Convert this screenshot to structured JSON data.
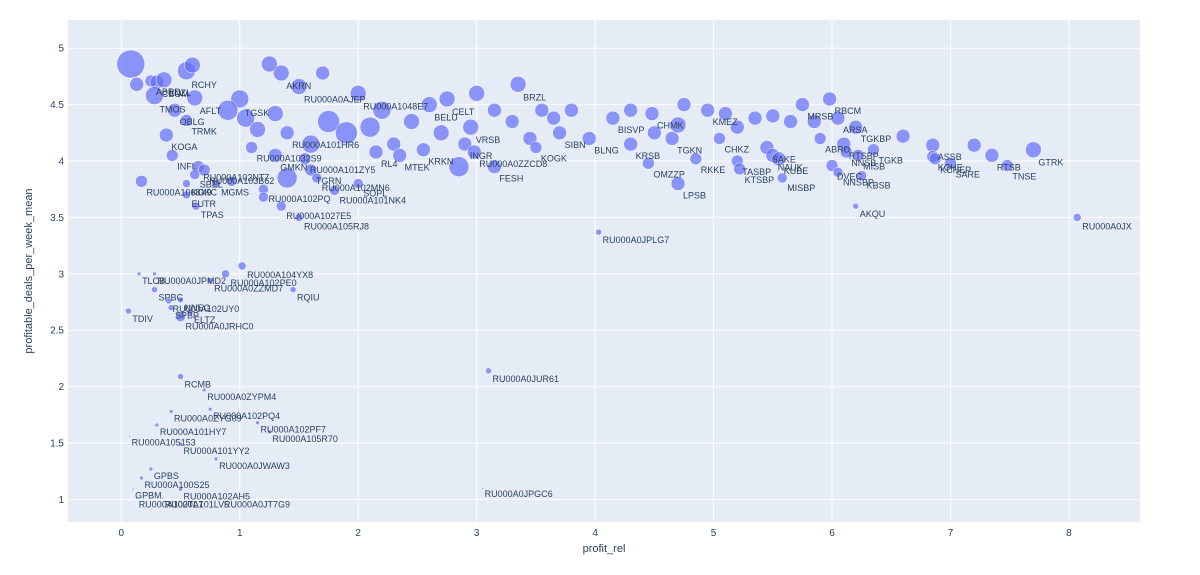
{
  "chart_data": {
    "type": "scatter",
    "subtype": "bubble",
    "title": "",
    "xlabel": "profit_rel",
    "ylabel": "profitable_deals_per_week_mean",
    "xlim": [
      -0.45,
      8.6
    ],
    "ylim": [
      0.8,
      5.25
    ],
    "xticks": [
      "0",
      "1",
      "2",
      "3",
      "4",
      "5",
      "6",
      "7",
      "8"
    ],
    "yticks": [
      "1",
      "1.5",
      "2",
      "2.5",
      "3",
      "3.5",
      "4",
      "4.5",
      "5"
    ],
    "background_color": "#e5ecf6",
    "marker_color": "#636efa",
    "grid_color": "#ffffff",
    "points": [
      {
        "label": "",
        "x": 0.08,
        "y": 4.86,
        "size": 14
      },
      {
        "label": "",
        "x": 0.13,
        "y": 4.68,
        "size": 7
      },
      {
        "label": "ABRD",
        "x": 0.25,
        "y": 4.71,
        "size": 6
      },
      {
        "label": "CBOM",
        "x": 0.3,
        "y": 4.7,
        "size": 7
      },
      {
        "label": "LNZL",
        "x": 0.36,
        "y": 4.72,
        "size": 8
      },
      {
        "label": "TMOS",
        "x": 0.28,
        "y": 4.58,
        "size": 9
      },
      {
        "label": "RCHY",
        "x": 0.55,
        "y": 4.8,
        "size": 9
      },
      {
        "label": "",
        "x": 0.6,
        "y": 4.85,
        "size": 8
      },
      {
        "label": "OBLG",
        "x": 0.45,
        "y": 4.45,
        "size": 7
      },
      {
        "label": "AFLT",
        "x": 0.62,
        "y": 4.56,
        "size": 8
      },
      {
        "label": "TRMK",
        "x": 0.55,
        "y": 4.36,
        "size": 6
      },
      {
        "label": "KOGA",
        "x": 0.38,
        "y": 4.23,
        "size": 7
      },
      {
        "label": "INFL",
        "x": 0.43,
        "y": 4.05,
        "size": 6
      },
      {
        "label": "RU000A102NT7",
        "x": 0.65,
        "y": 3.95,
        "size": 6
      },
      {
        "label": "RU000A103B62",
        "x": 0.7,
        "y": 3.92,
        "size": 6
      },
      {
        "label": "SBEL",
        "x": 0.62,
        "y": 3.88,
        "size": 5
      },
      {
        "label": "RU000A1068X9",
        "x": 0.17,
        "y": 3.82,
        "size": 6
      },
      {
        "label": "KGKC",
        "x": 0.55,
        "y": 3.8,
        "size": 4
      },
      {
        "label": "MGMS",
        "x": 0.8,
        "y": 3.8,
        "size": 4
      },
      {
        "label": "EUTR",
        "x": 0.55,
        "y": 3.7,
        "size": 4
      },
      {
        "label": "TPAS",
        "x": 0.63,
        "y": 3.6,
        "size": 4
      },
      {
        "label": "AKRN",
        "x": 1.35,
        "y": 4.78,
        "size": 8
      },
      {
        "label": "RU000A0AJEP",
        "x": 1.5,
        "y": 4.66,
        "size": 8
      },
      {
        "label": "",
        "x": 1.25,
        "y": 4.86,
        "size": 8
      },
      {
        "label": "",
        "x": 1.7,
        "y": 4.78,
        "size": 7
      },
      {
        "label": "TGSK",
        "x": 1.0,
        "y": 4.55,
        "size": 9
      },
      {
        "label": "",
        "x": 0.9,
        "y": 4.45,
        "size": 10
      },
      {
        "label": "RU000A101HR6",
        "x": 1.4,
        "y": 4.25,
        "size": 7
      },
      {
        "label": "RU000A1032S9",
        "x": 1.1,
        "y": 4.12,
        "size": 6
      },
      {
        "label": "GMKN",
        "x": 1.3,
        "y": 4.05,
        "size": 7
      },
      {
        "label": "RU000A101ZY5",
        "x": 1.55,
        "y": 4.02,
        "size": 6
      },
      {
        "label": "TGRN",
        "x": 1.6,
        "y": 3.92,
        "size": 6
      },
      {
        "label": "RU000A102MN6",
        "x": 1.65,
        "y": 3.85,
        "size": 5
      },
      {
        "label": "SOPL",
        "x": 2.0,
        "y": 3.8,
        "size": 5
      },
      {
        "label": "RU000A101NK4",
        "x": 1.8,
        "y": 3.74,
        "size": 5
      },
      {
        "label": "RU000A102PQ",
        "x": 1.2,
        "y": 3.75,
        "size": 5
      },
      {
        "label": "",
        "x": 0.93,
        "y": 3.82,
        "size": 5
      },
      {
        "label": "RU000A1027E5",
        "x": 1.35,
        "y": 3.6,
        "size": 5
      },
      {
        "label": "RU000A105RJ8",
        "x": 1.5,
        "y": 3.5,
        "size": 4
      },
      {
        "label": "",
        "x": 1.2,
        "y": 3.68,
        "size": 5
      },
      {
        "label": "",
        "x": 1.4,
        "y": 3.85,
        "size": 10
      },
      {
        "label": "",
        "x": 1.75,
        "y": 4.35,
        "size": 11
      },
      {
        "label": "",
        "x": 1.9,
        "y": 4.25,
        "size": 11
      },
      {
        "label": "",
        "x": 2.1,
        "y": 4.3,
        "size": 10
      },
      {
        "label": "",
        "x": 1.6,
        "y": 4.15,
        "size": 9
      },
      {
        "label": "",
        "x": 2.2,
        "y": 4.45,
        "size": 9
      },
      {
        "label": "",
        "x": 1.05,
        "y": 4.38,
        "size": 9
      },
      {
        "label": "",
        "x": 1.15,
        "y": 4.28,
        "size": 8
      },
      {
        "label": "",
        "x": 1.3,
        "y": 4.42,
        "size": 8
      },
      {
        "label": "RU000A1048E7",
        "x": 2.0,
        "y": 4.6,
        "size": 8
      },
      {
        "label": "",
        "x": 2.45,
        "y": 4.35,
        "size": 8
      },
      {
        "label": "BELU",
        "x": 2.6,
        "y": 4.5,
        "size": 8
      },
      {
        "label": "",
        "x": 2.7,
        "y": 4.25,
        "size": 8
      },
      {
        "label": "",
        "x": 2.3,
        "y": 4.15,
        "size": 7
      },
      {
        "label": "RL4",
        "x": 2.15,
        "y": 4.08,
        "size": 7
      },
      {
        "label": "MTEK",
        "x": 2.35,
        "y": 4.05,
        "size": 7
      },
      {
        "label": "KRKN",
        "x": 2.55,
        "y": 4.1,
        "size": 7
      },
      {
        "label": "CELT",
        "x": 2.75,
        "y": 4.55,
        "size": 8
      },
      {
        "label": "VRSB",
        "x": 2.95,
        "y": 4.3,
        "size": 8
      },
      {
        "label": "INGR",
        "x": 2.9,
        "y": 4.15,
        "size": 7
      },
      {
        "label": "RU000A0ZZCD8",
        "x": 2.98,
        "y": 4.08,
        "size": 7
      },
      {
        "label": "",
        "x": 3.0,
        "y": 4.6,
        "size": 8
      },
      {
        "label": "",
        "x": 3.15,
        "y": 4.45,
        "size": 7
      },
      {
        "label": "",
        "x": 2.85,
        "y": 3.95,
        "size": 10
      },
      {
        "label": "FESH",
        "x": 3.15,
        "y": 3.95,
        "size": 7
      },
      {
        "label": "",
        "x": 3.3,
        "y": 4.35,
        "size": 7
      },
      {
        "label": "BRZL",
        "x": 3.35,
        "y": 4.68,
        "size": 8
      },
      {
        "label": "",
        "x": 3.55,
        "y": 4.45,
        "size": 7
      },
      {
        "label": "",
        "x": 3.45,
        "y": 4.2,
        "size": 7
      },
      {
        "label": "KOGK",
        "x": 3.5,
        "y": 4.12,
        "size": 6
      },
      {
        "label": "",
        "x": 3.65,
        "y": 4.38,
        "size": 7
      },
      {
        "label": "SIBN",
        "x": 3.7,
        "y": 4.25,
        "size": 7
      },
      {
        "label": "",
        "x": 3.8,
        "y": 4.45,
        "size": 7
      },
      {
        "label": "BLNG",
        "x": 3.95,
        "y": 4.2,
        "size": 7
      },
      {
        "label": "BISVP",
        "x": 4.15,
        "y": 4.38,
        "size": 7
      },
      {
        "label": "",
        "x": 4.3,
        "y": 4.45,
        "size": 7
      },
      {
        "label": "CHMK",
        "x": 4.48,
        "y": 4.42,
        "size": 7
      },
      {
        "label": "KRSB",
        "x": 4.3,
        "y": 4.15,
        "size": 7
      },
      {
        "label": "",
        "x": 4.5,
        "y": 4.25,
        "size": 7
      },
      {
        "label": "TGKN",
        "x": 4.65,
        "y": 4.2,
        "size": 7
      },
      {
        "label": "",
        "x": 4.75,
        "y": 4.5,
        "size": 7
      },
      {
        "label": "",
        "x": 4.7,
        "y": 4.32,
        "size": 8
      },
      {
        "label": "OMZZP",
        "x": 4.45,
        "y": 3.98,
        "size": 6
      },
      {
        "label": "RKKE",
        "x": 4.85,
        "y": 4.02,
        "size": 6
      },
      {
        "label": "LPSB",
        "x": 4.7,
        "y": 3.8,
        "size": 7
      },
      {
        "label": "KMEZ",
        "x": 4.95,
        "y": 4.45,
        "size": 7
      },
      {
        "label": "",
        "x": 5.1,
        "y": 4.42,
        "size": 7
      },
      {
        "label": "",
        "x": 5.2,
        "y": 4.3,
        "size": 7
      },
      {
        "label": "",
        "x": 5.35,
        "y": 4.38,
        "size": 7
      },
      {
        "label": "CHKZ",
        "x": 5.05,
        "y": 4.2,
        "size": 6
      },
      {
        "label": "TASBP",
        "x": 5.2,
        "y": 4.0,
        "size": 6
      },
      {
        "label": "KTSBP",
        "x": 5.22,
        "y": 3.93,
        "size": 6
      },
      {
        "label": "",
        "x": 5.5,
        "y": 4.4,
        "size": 7
      },
      {
        "label": "",
        "x": 5.65,
        "y": 4.35,
        "size": 7
      },
      {
        "label": "SAKE",
        "x": 5.45,
        "y": 4.12,
        "size": 7
      },
      {
        "label": "NAUK",
        "x": 5.5,
        "y": 4.05,
        "size": 7
      },
      {
        "label": "KUBE",
        "x": 5.55,
        "y": 4.02,
        "size": 7
      },
      {
        "label": "MISBP",
        "x": 5.58,
        "y": 3.85,
        "size": 5
      },
      {
        "label": "MRSB",
        "x": 5.75,
        "y": 4.5,
        "size": 7
      },
      {
        "label": "",
        "x": 5.85,
        "y": 4.35,
        "size": 7
      },
      {
        "label": "ABRD",
        "x": 5.9,
        "y": 4.2,
        "size": 6
      },
      {
        "label": "RBCM",
        "x": 5.98,
        "y": 4.55,
        "size": 7
      },
      {
        "label": "ARSA",
        "x": 6.05,
        "y": 4.38,
        "size": 7
      },
      {
        "label": "TGKBP",
        "x": 6.2,
        "y": 4.3,
        "size": 7
      },
      {
        "label": "RTSBP",
        "x": 6.1,
        "y": 4.15,
        "size": 7
      },
      {
        "label": "NNSB",
        "x": 6.12,
        "y": 4.08,
        "size": 6
      },
      {
        "label": "MISB",
        "x": 6.22,
        "y": 4.05,
        "size": 6
      },
      {
        "label": "DVEC",
        "x": 6.0,
        "y": 3.96,
        "size": 6
      },
      {
        "label": "TGKB",
        "x": 6.35,
        "y": 4.1,
        "size": 6
      },
      {
        "label": "NNSBP",
        "x": 6.05,
        "y": 3.9,
        "size": 5
      },
      {
        "label": "KBSB",
        "x": 6.25,
        "y": 3.87,
        "size": 5
      },
      {
        "label": "",
        "x": 6.6,
        "y": 4.22,
        "size": 7
      },
      {
        "label": "ASSB",
        "x": 6.85,
        "y": 4.14,
        "size": 7
      },
      {
        "label": "KCHE",
        "x": 6.85,
        "y": 4.04,
        "size": 6
      },
      {
        "label": "KCHEP",
        "x": 6.87,
        "y": 4.02,
        "size": 6
      },
      {
        "label": "SARE",
        "x": 7.0,
        "y": 3.98,
        "size": 6
      },
      {
        "label": "",
        "x": 7.2,
        "y": 4.14,
        "size": 7
      },
      {
        "label": "RTSB",
        "x": 7.35,
        "y": 4.05,
        "size": 7
      },
      {
        "label": "TNSE",
        "x": 7.48,
        "y": 3.96,
        "size": 6
      },
      {
        "label": "GTRK",
        "x": 7.7,
        "y": 4.1,
        "size": 8
      },
      {
        "label": "AKQU",
        "x": 6.2,
        "y": 3.6,
        "size": 3
      },
      {
        "label": "RU000A0JX",
        "x": 8.07,
        "y": 3.5,
        "size": 4
      },
      {
        "label": "RU000A0JPLG7",
        "x": 4.03,
        "y": 3.37,
        "size": 3
      },
      {
        "label": "RU000A104YX8",
        "x": 1.02,
        "y": 3.07,
        "size": 4
      },
      {
        "label": "RU000A102PE0",
        "x": 0.88,
        "y": 3.0,
        "size": 4
      },
      {
        "label": "RU000A0ZZMD7",
        "x": 0.75,
        "y": 2.94,
        "size": 3
      },
      {
        "label": "RU000A0JPMD2",
        "x": 0.28,
        "y": 3.0,
        "size": 2
      },
      {
        "label": "TLCB",
        "x": 0.15,
        "y": 3.0,
        "size": 2
      },
      {
        "label": "SPBC",
        "x": 0.28,
        "y": 2.86,
        "size": 3
      },
      {
        "label": "RQIU",
        "x": 1.45,
        "y": 2.86,
        "size": 3
      },
      {
        "label": "RU000A102UY0",
        "x": 0.4,
        "y": 2.76,
        "size": 3
      },
      {
        "label": "NNEG",
        "x": 0.5,
        "y": 2.77,
        "size": 3
      },
      {
        "label": "SPBP",
        "x": 0.42,
        "y": 2.7,
        "size": 3
      },
      {
        "label": "ELTZ",
        "x": 0.58,
        "y": 2.66,
        "size": 3
      },
      {
        "label": "RU000A0JRHC0",
        "x": 0.5,
        "y": 2.62,
        "size": 5
      },
      {
        "label": "TDIV",
        "x": 0.06,
        "y": 2.67,
        "size": 3
      },
      {
        "label": "RCMB",
        "x": 0.5,
        "y": 2.09,
        "size": 3
      },
      {
        "label": "RU000A0ZYPM4",
        "x": 0.7,
        "y": 1.97,
        "size": 2
      },
      {
        "label": "RU000A0JUR61",
        "x": 3.1,
        "y": 2.14,
        "size": 3
      },
      {
        "label": "RU000A0ZYG09",
        "x": 0.42,
        "y": 1.78,
        "size": 2
      },
      {
        "label": "RU000A102PQ4",
        "x": 0.75,
        "y": 1.8,
        "size": 2
      },
      {
        "label": "RU000A101HY7",
        "x": 0.3,
        "y": 1.66,
        "size": 2
      },
      {
        "label": "RU000A102PF7",
        "x": 1.15,
        "y": 1.68,
        "size": 2
      },
      {
        "label": "RU000A105R70",
        "x": 1.25,
        "y": 1.6,
        "size": 2
      },
      {
        "label": "RU000A105153",
        "x": 0.07,
        "y": 1.56,
        "size": 1
      },
      {
        "label": "RU000A101YY2",
        "x": 0.5,
        "y": 1.49,
        "size": 2
      },
      {
        "label": "RU000A0JWAW3",
        "x": 0.8,
        "y": 1.36,
        "size": 2
      },
      {
        "label": "GPBS",
        "x": 0.25,
        "y": 1.27,
        "size": 2
      },
      {
        "label": "RU000A100S25",
        "x": 0.17,
        "y": 1.19,
        "size": 2
      },
      {
        "label": "GPBM",
        "x": 0.1,
        "y": 1.09,
        "size": 1
      },
      {
        "label": "RU000A102AH5",
        "x": 0.5,
        "y": 1.09,
        "size": 2
      },
      {
        "label": "RU000A0JPGC6",
        "x": 3.05,
        "y": 1.1,
        "size": 1
      },
      {
        "label": "RU000A102TL7",
        "x": 0.13,
        "y": 1.01,
        "size": 1
      },
      {
        "label": "RU000A101LV5",
        "x": 0.35,
        "y": 1.01,
        "size": 1
      },
      {
        "label": "RU000A0JT7G9",
        "x": 0.85,
        "y": 1.01,
        "size": 1
      }
    ]
  }
}
